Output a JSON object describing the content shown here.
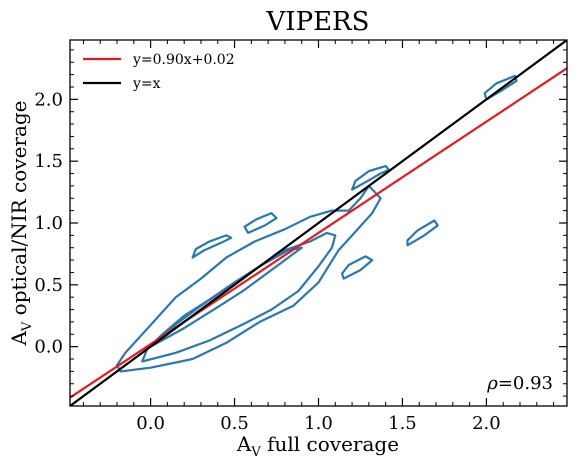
{
  "chart_data": {
    "type": "line",
    "title": "VIPERS",
    "xlabel": {
      "main": "A",
      "sub": "V",
      "rest": " full coverage"
    },
    "ylabel": {
      "main": "A",
      "sub": "V",
      "rest": " optical/NIR coverage"
    },
    "xlim": [
      -0.48,
      2.48
    ],
    "ylim": [
      -0.48,
      2.48
    ],
    "xticks": [
      0.0,
      0.5,
      1.0,
      1.5,
      2.0
    ],
    "yticks": [
      0.0,
      0.5,
      1.0,
      1.5,
      2.0
    ],
    "xtick_labels": [
      "0.0",
      "0.5",
      "1.0",
      "1.5",
      "2.0"
    ],
    "ytick_labels": [
      "0.0",
      "0.5",
      "1.0",
      "1.5",
      "2.0"
    ],
    "grid": false,
    "legend_position": "top-left",
    "series": [
      {
        "name": "y=0.90x+0.02",
        "color": "#e8191c",
        "kind": "fit-line",
        "slope": 0.9,
        "intercept": 0.02
      },
      {
        "name": "y=x",
        "color": "#000000",
        "kind": "one-to-one-line",
        "slope": 1.0,
        "intercept": 0.0
      }
    ],
    "contours": {
      "color": "#2b78ae",
      "levels": [
        {
          "name": "outer",
          "points": [
            [
              -0.18,
              -0.2
            ],
            [
              0.0,
              -0.17
            ],
            [
              0.25,
              -0.1
            ],
            [
              0.45,
              0.03
            ],
            [
              0.65,
              0.2
            ],
            [
              0.85,
              0.33
            ],
            [
              1.0,
              0.52
            ],
            [
              1.12,
              0.78
            ],
            [
              1.22,
              0.93
            ],
            [
              1.32,
              1.08
            ],
            [
              1.37,
              1.2
            ],
            [
              1.3,
              1.3
            ],
            [
              1.25,
              1.2
            ],
            [
              1.18,
              1.1
            ],
            [
              1.08,
              1.1
            ],
            [
              0.95,
              1.05
            ],
            [
              0.8,
              0.95
            ],
            [
              0.62,
              0.85
            ],
            [
              0.45,
              0.72
            ],
            [
              0.3,
              0.55
            ],
            [
              0.15,
              0.4
            ],
            [
              0.05,
              0.25
            ],
            [
              -0.05,
              0.1
            ],
            [
              -0.15,
              -0.05
            ],
            [
              -0.2,
              -0.15
            ],
            [
              -0.18,
              -0.2
            ]
          ]
        },
        {
          "name": "middle",
          "points": [
            [
              -0.05,
              -0.12
            ],
            [
              0.15,
              -0.05
            ],
            [
              0.35,
              0.05
            ],
            [
              0.55,
              0.18
            ],
            [
              0.72,
              0.3
            ],
            [
              0.88,
              0.45
            ],
            [
              1.0,
              0.65
            ],
            [
              1.08,
              0.8
            ],
            [
              1.1,
              0.9
            ],
            [
              1.05,
              0.92
            ],
            [
              0.95,
              0.85
            ],
            [
              0.8,
              0.78
            ],
            [
              0.65,
              0.65
            ],
            [
              0.5,
              0.52
            ],
            [
              0.35,
              0.38
            ],
            [
              0.2,
              0.25
            ],
            [
              0.07,
              0.1
            ],
            [
              -0.02,
              -0.02
            ],
            [
              -0.05,
              -0.12
            ]
          ]
        },
        {
          "name": "inner",
          "points": [
            [
              0.0,
              0.0
            ],
            [
              0.2,
              0.15
            ],
            [
              0.4,
              0.32
            ],
            [
              0.55,
              0.45
            ],
            [
              0.7,
              0.6
            ],
            [
              0.85,
              0.75
            ],
            [
              0.9,
              0.8
            ],
            [
              0.82,
              0.78
            ],
            [
              0.65,
              0.65
            ],
            [
              0.48,
              0.5
            ],
            [
              0.3,
              0.33
            ],
            [
              0.15,
              0.18
            ],
            [
              0.0,
              0.0
            ]
          ]
        },
        {
          "name": "blob-left",
          "points": [
            [
              0.25,
              0.72
            ],
            [
              0.32,
              0.78
            ],
            [
              0.42,
              0.84
            ],
            [
              0.48,
              0.88
            ],
            [
              0.45,
              0.9
            ],
            [
              0.35,
              0.85
            ],
            [
              0.27,
              0.79
            ],
            [
              0.25,
              0.72
            ]
          ]
        },
        {
          "name": "blob-upper-mid",
          "points": [
            [
              0.58,
              0.92
            ],
            [
              0.68,
              0.98
            ],
            [
              0.75,
              1.04
            ],
            [
              0.72,
              1.08
            ],
            [
              0.63,
              1.03
            ],
            [
              0.56,
              0.97
            ],
            [
              0.58,
              0.92
            ]
          ]
        },
        {
          "name": "blob-upper-right",
          "points": [
            [
              1.2,
              1.27
            ],
            [
              1.28,
              1.33
            ],
            [
              1.37,
              1.4
            ],
            [
              1.42,
              1.43
            ],
            [
              1.4,
              1.46
            ],
            [
              1.3,
              1.42
            ],
            [
              1.22,
              1.34
            ],
            [
              1.2,
              1.27
            ]
          ]
        },
        {
          "name": "blob-low-right",
          "points": [
            [
              1.15,
              0.55
            ],
            [
              1.25,
              0.62
            ],
            [
              1.32,
              0.7
            ],
            [
              1.28,
              0.73
            ],
            [
              1.18,
              0.66
            ],
            [
              1.14,
              0.59
            ],
            [
              1.15,
              0.55
            ]
          ]
        },
        {
          "name": "blob-far-right",
          "points": [
            [
              1.53,
              0.82
            ],
            [
              1.63,
              0.9
            ],
            [
              1.71,
              0.98
            ],
            [
              1.69,
              1.02
            ],
            [
              1.59,
              0.94
            ],
            [
              1.53,
              0.86
            ],
            [
              1.53,
              0.82
            ]
          ]
        },
        {
          "name": "blob-top",
          "points": [
            [
              2.0,
              2.0
            ],
            [
              2.1,
              2.08
            ],
            [
              2.18,
              2.15
            ],
            [
              2.17,
              2.19
            ],
            [
              2.06,
              2.13
            ],
            [
              1.99,
              2.05
            ],
            [
              2.0,
              2.0
            ]
          ]
        }
      ]
    },
    "annotation": {
      "symbol": "ρ",
      "text": "=0.93",
      "position": "bottom-right"
    }
  }
}
